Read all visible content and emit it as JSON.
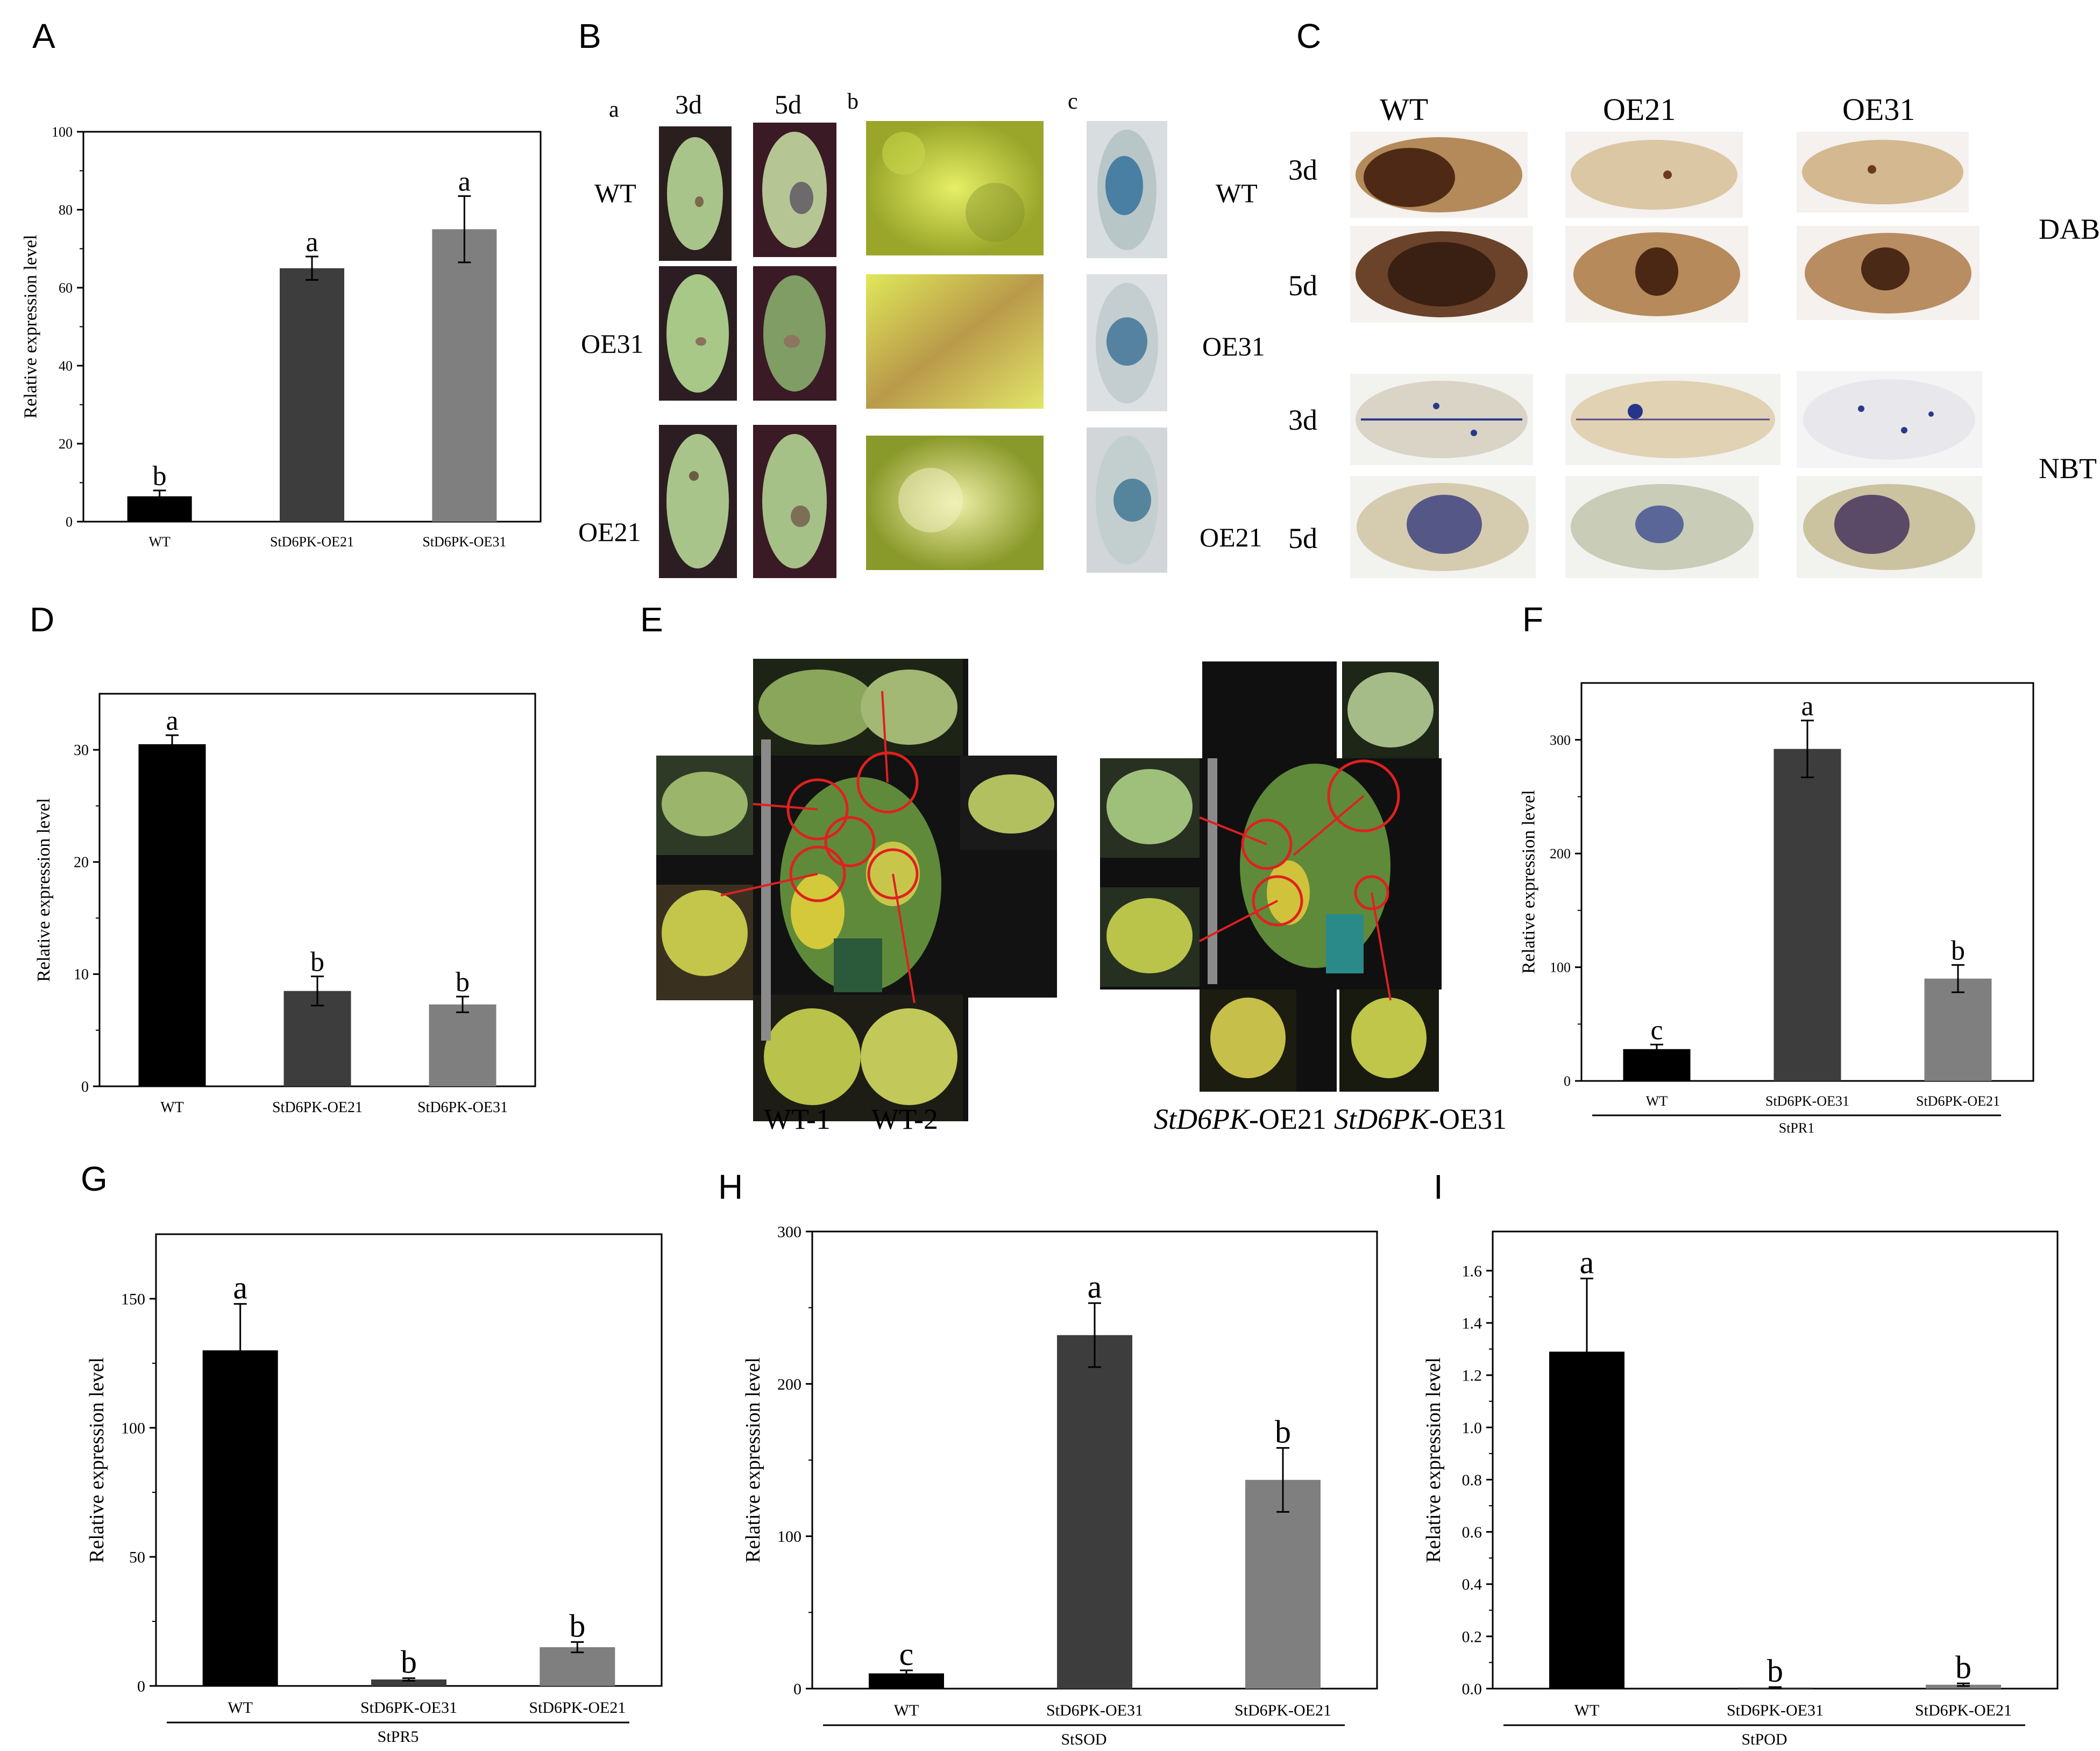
{
  "panels": {
    "A": "A",
    "B": "B",
    "C": "C",
    "D": "D",
    "E": "E",
    "F": "F",
    "G": "G",
    "H": "H",
    "I": "I"
  },
  "panel_b": {
    "sub_a": "a",
    "sub_b": "b",
    "sub_c": "c",
    "day3": "3d",
    "day5": "5d",
    "rows_left": [
      "WT",
      "OE31",
      "OE21"
    ],
    "rows_right": [
      "WT",
      "OE31",
      "OE21"
    ]
  },
  "panel_c": {
    "cols": [
      "WT",
      "OE21",
      "OE31"
    ],
    "rows": [
      "3d",
      "5d",
      "3d",
      "5d"
    ],
    "stain_dab": "DAB",
    "stain_nbt": "NBT"
  },
  "panel_e": {
    "wt1": "WT-1",
    "wt2": "WT-2",
    "oe21_ital": "StD6PK",
    "oe21_rest": "-OE21",
    "oe31_ital": "StD6PK",
    "oe31_rest": "-OE31"
  },
  "colors": {
    "black": "#000000",
    "dark_gray": "#3d3d3d",
    "mid_gray": "#7f7f7f"
  },
  "chart_data": [
    {
      "id": "A",
      "type": "bar",
      "categories": [
        "WT",
        "StD6PK-OE21",
        "StD6PK-OE31"
      ],
      "values": [
        6.5,
        65,
        75
      ],
      "errors": [
        1.5,
        3,
        8.5
      ],
      "letters": [
        "b",
        "a",
        "a"
      ],
      "ylabel": "Relative expression level",
      "xlabel": "",
      "ylim": [
        0,
        100
      ],
      "yticks": [
        0,
        20,
        40,
        60,
        80,
        100
      ]
    },
    {
      "id": "D",
      "type": "bar",
      "categories": [
        "WT",
        "StD6PK-OE21",
        "StD6PK-OE31"
      ],
      "values": [
        30.5,
        8.5,
        7.3
      ],
      "errors": [
        0.8,
        1.3,
        0.7
      ],
      "letters": [
        "a",
        "b",
        "b"
      ],
      "ylabel": "Relative expression level",
      "xlabel": "",
      "ylim": [
        0,
        35
      ],
      "yticks": [
        0,
        10,
        20,
        30
      ]
    },
    {
      "id": "F",
      "type": "bar",
      "categories": [
        "WT",
        "StD6PK-OE31",
        "StD6PK-OE21"
      ],
      "values": [
        28,
        292,
        90
      ],
      "errors": [
        4,
        25,
        12
      ],
      "letters": [
        "c",
        "a",
        "b"
      ],
      "ylabel": "Relative expression level",
      "xlabel": "StPR1",
      "ylim": [
        0,
        350
      ],
      "yticks": [
        0,
        100,
        200,
        300
      ]
    },
    {
      "id": "G",
      "type": "bar",
      "categories": [
        "WT",
        "StD6PK-OE31",
        "StD6PK-OE21"
      ],
      "values": [
        130,
        2.5,
        15
      ],
      "errors": [
        18,
        0.5,
        2
      ],
      "letters": [
        "a",
        "b",
        "b"
      ],
      "ylabel": "Relative expression level",
      "xlabel": "StPR5",
      "ylim": [
        0,
        175
      ],
      "yticks": [
        0,
        50,
        100,
        150
      ]
    },
    {
      "id": "H",
      "type": "bar",
      "categories": [
        "WT",
        "StD6PK-OE31",
        "StD6PK-OE21"
      ],
      "values": [
        10,
        232,
        137
      ],
      "errors": [
        2,
        21,
        21
      ],
      "letters": [
        "c",
        "a",
        "b"
      ],
      "ylabel": "Relative expression level",
      "xlabel": "StSOD",
      "ylim": [
        0,
        300
      ],
      "yticks": [
        0,
        100,
        200,
        300
      ]
    },
    {
      "id": "I",
      "type": "bar",
      "categories": [
        "WT",
        "StD6PK-OE31",
        "StD6PK-OE21"
      ],
      "values": [
        1.29,
        0.004,
        0.015
      ],
      "errors": [
        0.28,
        0.002,
        0.005
      ],
      "letters": [
        "a",
        "b",
        "b"
      ],
      "ylabel": "Relative expression level",
      "xlabel": "StPOD",
      "ylim": [
        0,
        1.75
      ],
      "yticks": [
        0.0,
        0.2,
        0.4,
        0.6,
        0.8,
        1.0,
        1.2,
        1.4,
        1.6
      ],
      "tick_decimals": 1
    }
  ]
}
